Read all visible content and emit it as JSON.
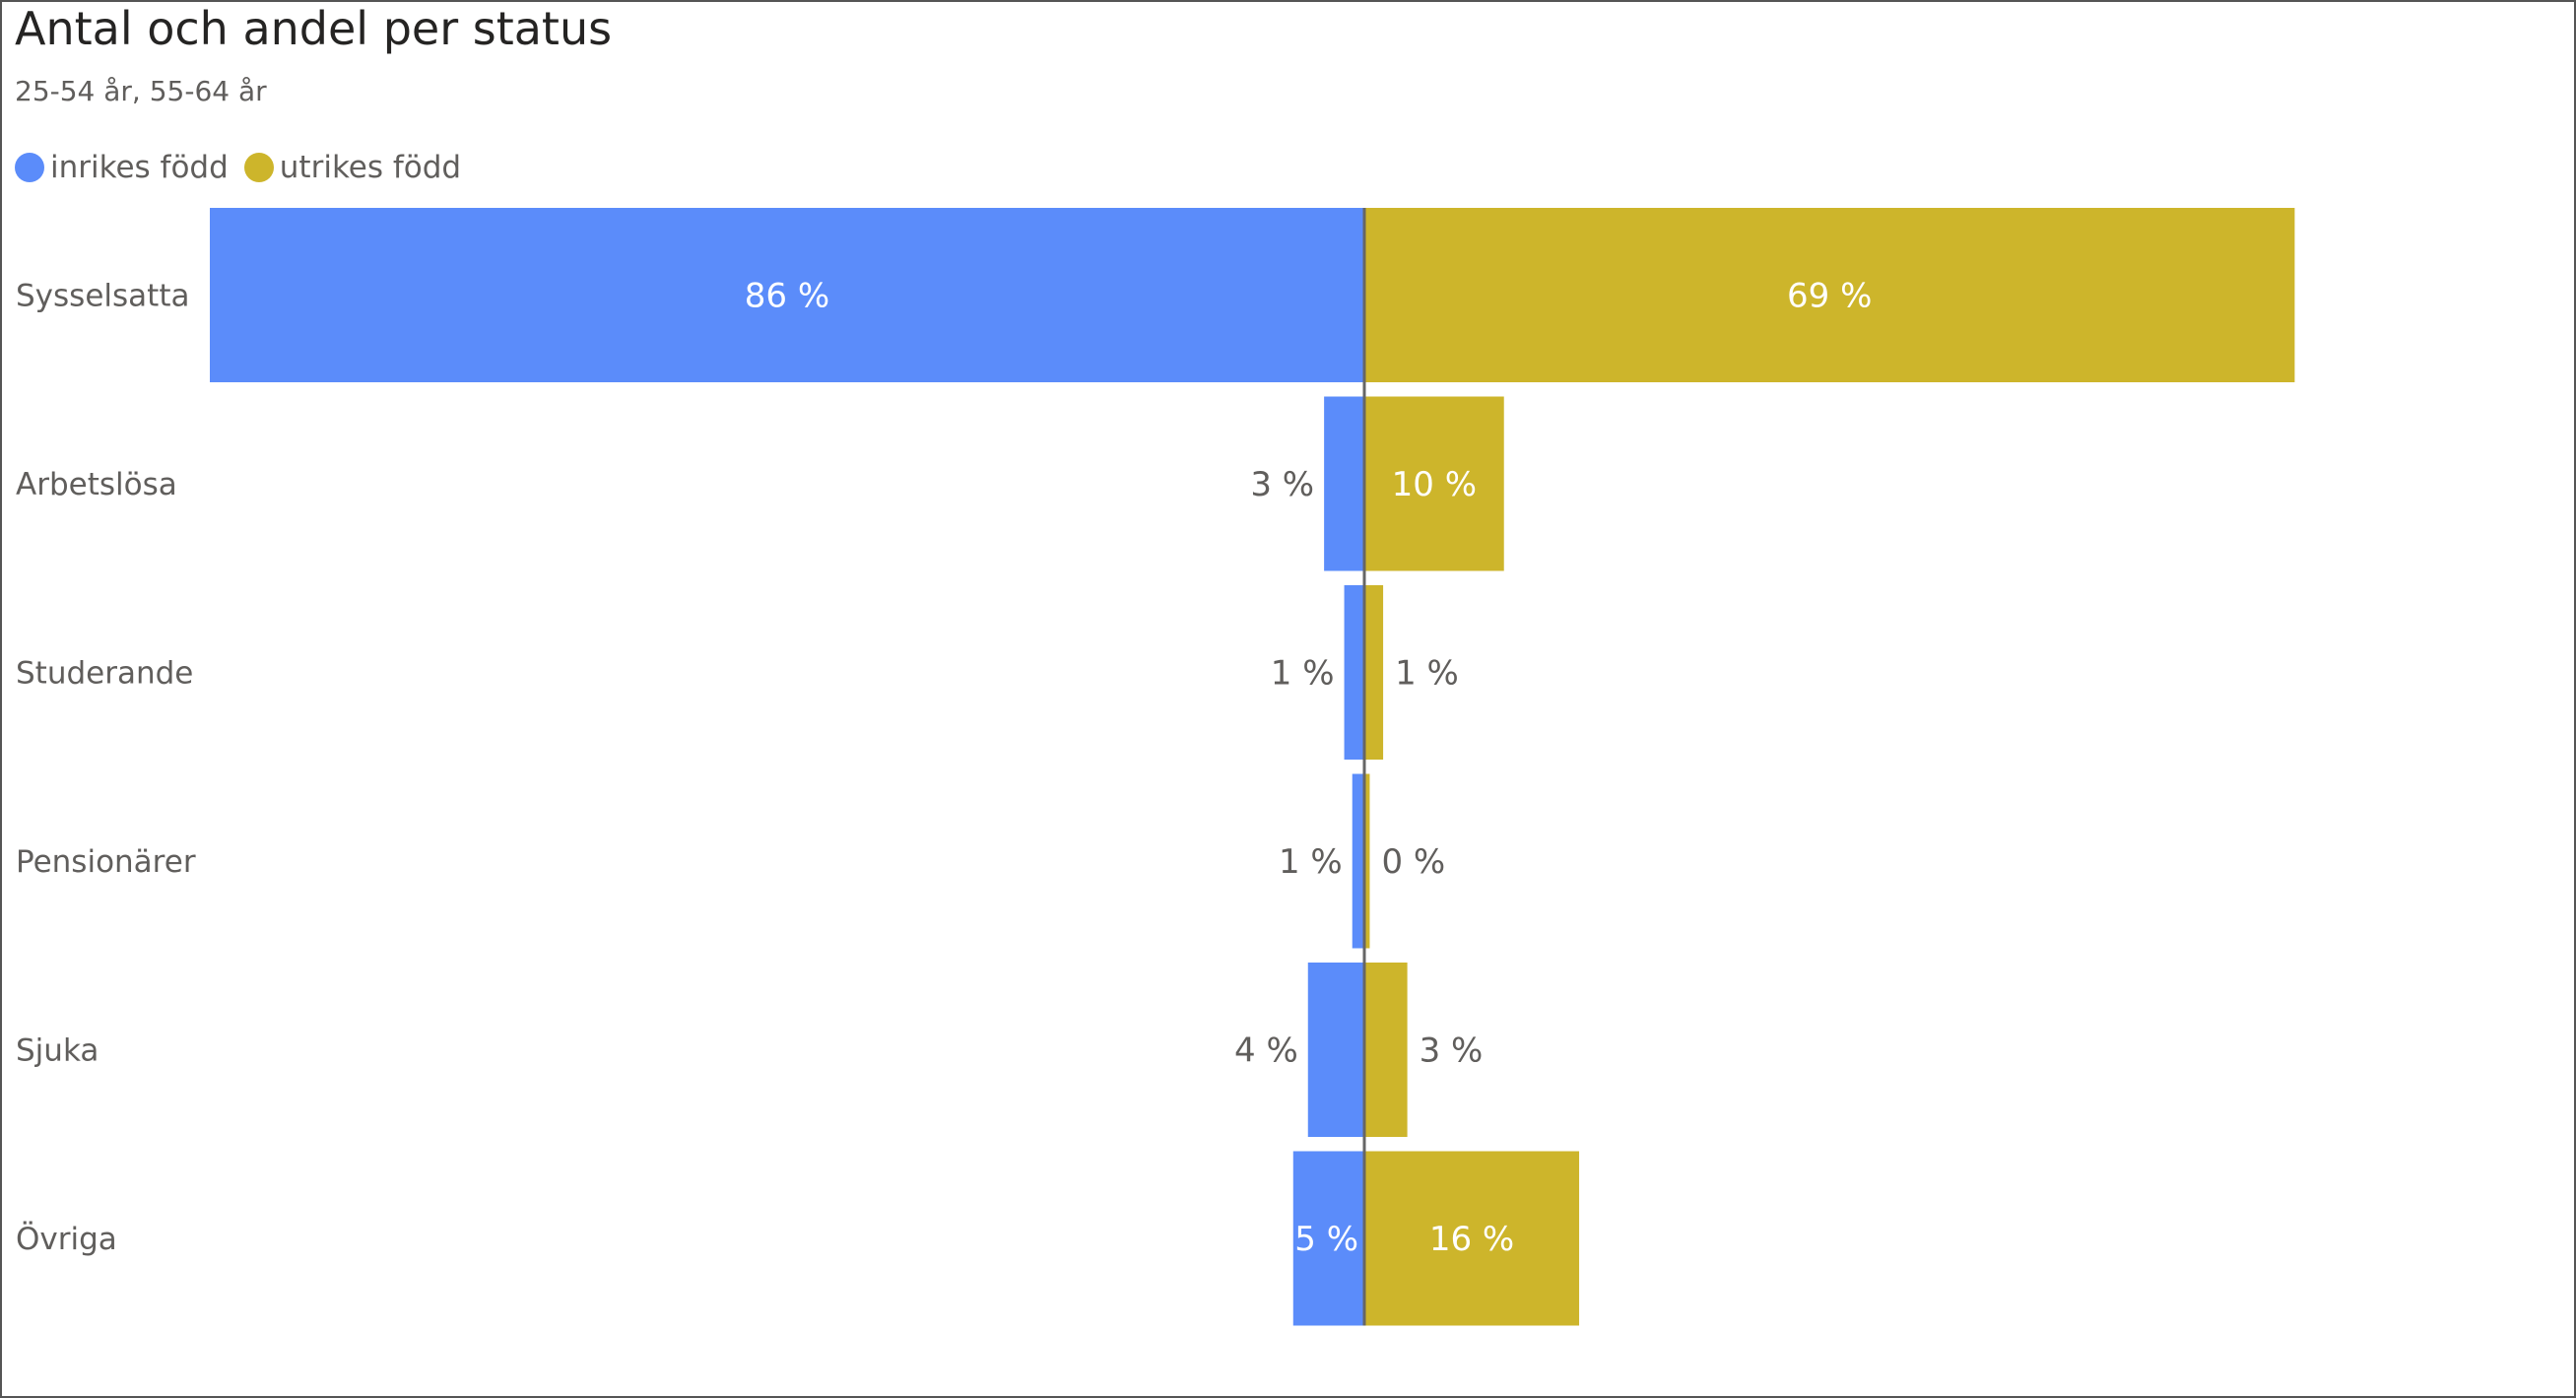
{
  "chart_data": {
    "type": "bar",
    "orientation": "horizontal-diverging",
    "title": "Antal och andel per status",
    "subtitle": "25-54 år, 55-64 år",
    "categories": [
      "Sysselsatta",
      "Arbetslösa",
      "Studerande",
      "Pensionärer",
      "Sjuka",
      "Övriga"
    ],
    "series": [
      {
        "name": "inrikes född",
        "color": "#5b8cfa",
        "direction": "left",
        "values": [
          86,
          3,
          1,
          1,
          4,
          5
        ],
        "labels": [
          "86 %",
          "3 %",
          "1 %",
          "1 %",
          "4 %",
          "5 %"
        ],
        "bar_values": [
          86,
          3,
          1.5,
          0.9,
          4.2,
          5.3
        ]
      },
      {
        "name": "utrikes född",
        "color": "#cdb52b",
        "direction": "right",
        "values": [
          69,
          10,
          1,
          0,
          3,
          16
        ],
        "labels": [
          "69 %",
          "10 %",
          "1 %",
          "0 %",
          "3 %",
          "16 %"
        ],
        "bar_values": [
          69.3,
          10.4,
          1.4,
          0.4,
          3.2,
          16
        ]
      }
    ],
    "legend_position": "top-left",
    "grid": false
  }
}
